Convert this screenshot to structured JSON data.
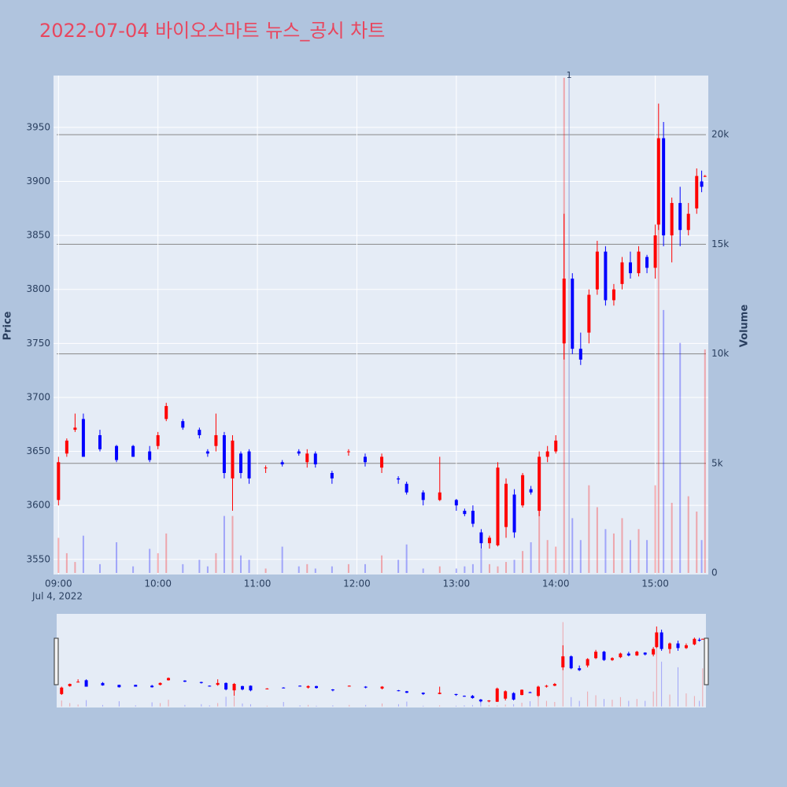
{
  "chart_data": {
    "type": "candlestick",
    "title": "2022-07-04 바이오스마트 뉴스_공시 차트",
    "y_label": "Price",
    "y2_label": "Volume",
    "date_label": "Jul 4, 2022",
    "annotation": {
      "text": "1",
      "x": "2022-07-04 14:08"
    },
    "up_color": "#ff0000",
    "down_color": "#0000ff",
    "x": [
      "2022-07-04 09:00",
      "2022-07-04 09:05",
      "2022-07-04 09:10",
      "2022-07-04 09:15",
      "2022-07-04 09:25",
      "2022-07-04 09:35",
      "2022-07-04 09:45",
      "2022-07-04 09:55",
      "2022-07-04 10:00",
      "2022-07-04 10:05",
      "2022-07-04 10:15",
      "2022-07-04 10:25",
      "2022-07-04 10:30",
      "2022-07-04 10:35",
      "2022-07-04 10:40",
      "2022-07-04 10:45",
      "2022-07-04 10:50",
      "2022-07-04 10:55",
      "2022-07-04 11:05",
      "2022-07-04 11:15",
      "2022-07-04 11:25",
      "2022-07-04 11:30",
      "2022-07-04 11:35",
      "2022-07-04 11:45",
      "2022-07-04 11:55",
      "2022-07-04 12:05",
      "2022-07-04 12:15",
      "2022-07-04 12:25",
      "2022-07-04 12:30",
      "2022-07-04 12:40",
      "2022-07-04 12:50",
      "2022-07-04 13:00",
      "2022-07-04 13:05",
      "2022-07-04 13:10",
      "2022-07-04 13:15",
      "2022-07-04 13:20",
      "2022-07-04 13:25",
      "2022-07-04 13:30",
      "2022-07-04 13:35",
      "2022-07-04 13:40",
      "2022-07-04 13:45",
      "2022-07-04 13:50",
      "2022-07-04 13:55",
      "2022-07-04 14:00",
      "2022-07-04 14:05",
      "2022-07-04 14:10",
      "2022-07-04 14:15",
      "2022-07-04 14:20",
      "2022-07-04 14:25",
      "2022-07-04 14:30",
      "2022-07-04 14:35",
      "2022-07-04 14:40",
      "2022-07-04 14:45",
      "2022-07-04 14:50",
      "2022-07-04 14:55",
      "2022-07-04 15:00",
      "2022-07-04 15:02",
      "2022-07-04 15:05",
      "2022-07-04 15:10",
      "2022-07-04 15:15",
      "2022-07-04 15:20",
      "2022-07-04 15:25",
      "2022-07-04 15:28",
      "2022-07-04 15:30"
    ],
    "open": [
      3605,
      3648,
      3670,
      3680,
      3665,
      3655,
      3655,
      3650,
      3655,
      3680,
      3678,
      3670,
      3650,
      3655,
      3665,
      3625,
      3648,
      3650,
      3635,
      3640,
      3650,
      3640,
      3648,
      3630,
      3650,
      3645,
      3635,
      3625,
      3620,
      3612,
      3605,
      3605,
      3595,
      3595,
      3575,
      3565,
      3563,
      3580,
      3610,
      3600,
      3615,
      3595,
      3645,
      3650,
      3750,
      3810,
      3745,
      3760,
      3800,
      3835,
      3790,
      3805,
      3825,
      3815,
      3830,
      3820,
      3860,
      3940,
      3850,
      3880,
      3855,
      3875,
      3900,
      3905
    ],
    "high": [
      3645,
      3662,
      3685,
      3685,
      3670,
      3656,
      3656,
      3655,
      3668,
      3695,
      3680,
      3672,
      3652,
      3685,
      3668,
      3665,
      3650,
      3652,
      3637,
      3642,
      3652,
      3652,
      3650,
      3632,
      3652,
      3648,
      3648,
      3627,
      3622,
      3614,
      3645,
      3606,
      3597,
      3600,
      3578,
      3572,
      3640,
      3625,
      3615,
      3630,
      3618,
      3650,
      3655,
      3665,
      3870,
      3815,
      3760,
      3800,
      3845,
      3840,
      3805,
      3830,
      3835,
      3840,
      3832,
      3860,
      3972,
      3955,
      3885,
      3895,
      3880,
      3912,
      3910,
      3906
    ],
    "low": [
      3600,
      3645,
      3668,
      3645,
      3650,
      3640,
      3645,
      3640,
      3652,
      3678,
      3670,
      3662,
      3645,
      3650,
      3625,
      3595,
      3625,
      3620,
      3630,
      3636,
      3646,
      3635,
      3635,
      3620,
      3646,
      3636,
      3630,
      3620,
      3610,
      3600,
      3604,
      3595,
      3590,
      3580,
      3560,
      3560,
      3562,
      3570,
      3570,
      3598,
      3610,
      3590,
      3640,
      3648,
      3735,
      3740,
      3730,
      3750,
      3795,
      3785,
      3785,
      3800,
      3810,
      3812,
      3815,
      3810,
      3855,
      3840,
      3825,
      3840,
      3850,
      3870,
      3890,
      3904
    ],
    "close": [
      3640,
      3660,
      3672,
      3645,
      3652,
      3642,
      3645,
      3642,
      3665,
      3692,
      3672,
      3665,
      3648,
      3665,
      3630,
      3660,
      3630,
      3625,
      3635,
      3638,
      3648,
      3648,
      3638,
      3625,
      3650,
      3640,
      3645,
      3624,
      3612,
      3605,
      3612,
      3600,
      3592,
      3583,
      3565,
      3570,
      3635,
      3620,
      3575,
      3628,
      3612,
      3645,
      3650,
      3660,
      3810,
      3745,
      3735,
      3795,
      3835,
      3790,
      3800,
      3825,
      3815,
      3835,
      3820,
      3850,
      3940,
      3850,
      3880,
      3855,
      3870,
      3905,
      3895,
      3905
    ],
    "volume": [
      1600,
      900,
      500,
      1700,
      400,
      1400,
      300,
      1100,
      900,
      1800,
      400,
      600,
      300,
      900,
      2600,
      2600,
      800,
      600,
      200,
      1200,
      300,
      400,
      200,
      300,
      400,
      400,
      800,
      600,
      1300,
      200,
      300,
      200,
      300,
      400,
      1100,
      400,
      300,
      500,
      600,
      1000,
      1400,
      3000,
      1500,
      1200,
      22600,
      2500,
      1500,
      4000,
      3000,
      2000,
      1800,
      2500,
      1500,
      2000,
      1500,
      4000,
      19500,
      12000,
      3200,
      10500,
      3500,
      2800,
      1500,
      10200
    ],
    "xlim": [
      "2022-07-04 08:57",
      "2022-07-04 15:32"
    ],
    "xticks": [
      {
        "value": "2022-07-04 09:00",
        "label": "09:00"
      },
      {
        "value": "2022-07-04 10:00",
        "label": "10:00"
      },
      {
        "value": "2022-07-04 11:00",
        "label": "11:00"
      },
      {
        "value": "2022-07-04 12:00",
        "label": "12:00"
      },
      {
        "value": "2022-07-04 13:00",
        "label": "13:00"
      },
      {
        "value": "2022-07-04 14:00",
        "label": "14:00"
      },
      {
        "value": "2022-07-04 15:00",
        "label": "15:00"
      }
    ],
    "ylim": [
      3536,
      3998
    ],
    "yticks": [
      3550,
      3600,
      3650,
      3700,
      3750,
      3800,
      3850,
      3900,
      3950
    ],
    "y2lim": [
      -72,
      22700
    ],
    "y2ticks": [
      0,
      {
        "value": 5000,
        "label": "5k"
      },
      {
        "value": 10000,
        "label": "10k"
      },
      {
        "value": 15000,
        "label": "15k"
      },
      {
        "value": 20000,
        "label": "20k"
      }
    ]
  }
}
